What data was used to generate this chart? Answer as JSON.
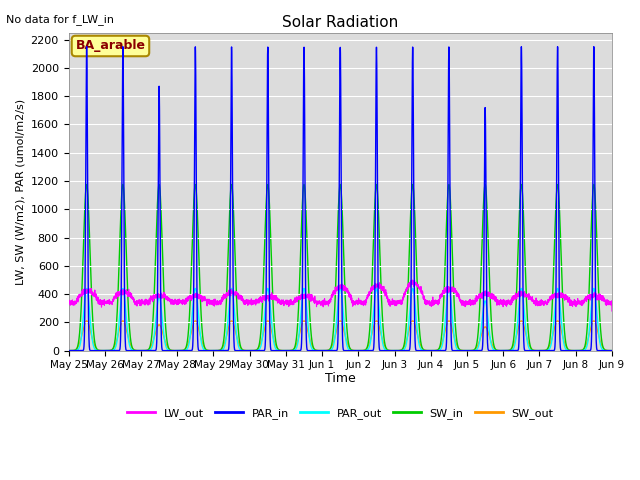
{
  "title": "Solar Radiation",
  "ylabel": "LW, SW (W/m2), PAR (umol/m2/s)",
  "xlabel": "Time",
  "note": "No data for f_LW_in",
  "legend_label": "BA_arable",
  "ylim": [
    0,
    2250
  ],
  "yticks": [
    0,
    200,
    400,
    600,
    800,
    1000,
    1200,
    1400,
    1600,
    1800,
    2000,
    2200
  ],
  "num_days": 15,
  "series": {
    "LW_out": {
      "color": "#ff00ff",
      "label": "LW_out"
    },
    "PAR_in": {
      "color": "#0000ff",
      "label": "PAR_in"
    },
    "PAR_out": {
      "color": "#00ffff",
      "label": "PAR_out"
    },
    "SW_in": {
      "color": "#00cc00",
      "label": "SW_in"
    },
    "SW_out": {
      "color": "#ff9900",
      "label": "SW_out"
    }
  },
  "plot_bg": "#dcdcdc",
  "lw_out_base": 360,
  "par_in_peak": 2150,
  "par_out_peak": 440,
  "sw_in_peak": 1175,
  "sw_out_peak": 210,
  "par_in_sigma": 0.6,
  "par_out_sigma": 2.0,
  "sw_in_sigma": 2.2,
  "sw_out_sigma": 2.8,
  "day_scales_par_in": [
    1.0,
    1.0,
    0.87,
    1.0,
    1.0,
    1.0,
    1.0,
    1.0,
    1.0,
    1.0,
    1.0,
    0.8,
    1.0,
    1.0,
    1.0
  ],
  "lw_out_day_peak": [
    420,
    415,
    390,
    385,
    410,
    380,
    385,
    450,
    460,
    480,
    440,
    400,
    400,
    395,
    390
  ],
  "lw_out_night": [
    340,
    340,
    340,
    340,
    340,
    340,
    340,
    340,
    340,
    340,
    340,
    340,
    340,
    340,
    340
  ]
}
